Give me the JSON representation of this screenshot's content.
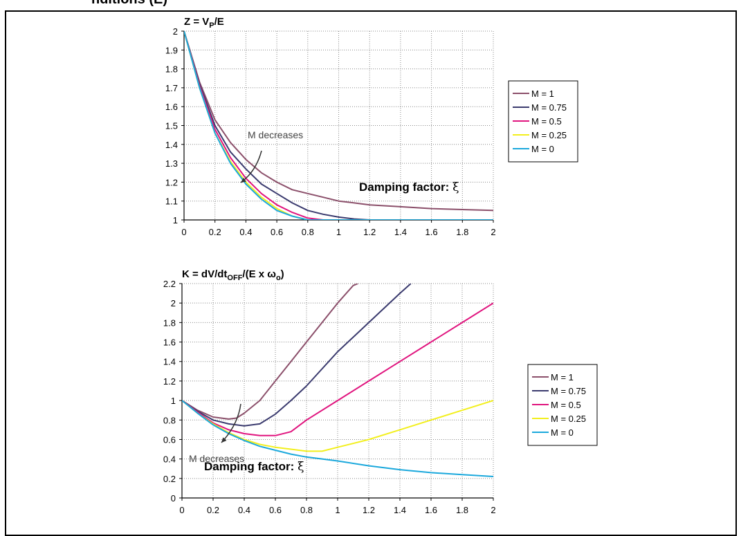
{
  "header_fragment": "nditions (E)",
  "chart_data": [
    {
      "type": "line",
      "title_parts": [
        "Z = V",
        "P",
        "/E"
      ],
      "xlabel_annotation": "Damping factor: ",
      "xi_symbol": "ξ",
      "annotation": "M decreases",
      "xlim": [
        0,
        2
      ],
      "ylim": [
        1,
        2
      ],
      "xticks": [
        "0",
        "0.2",
        "0.4",
        "0.6",
        "0.8",
        "1",
        "1.2",
        "1.4",
        "1.6",
        "1.8",
        "2"
      ],
      "yticks": [
        "1",
        "1.1",
        "1.2",
        "1.3",
        "1.4",
        "1.5",
        "1.6",
        "1.7",
        "1.8",
        "1.9",
        "2"
      ],
      "legend_position": "right",
      "colors": [
        "#8B4F6A",
        "#3A3A6E",
        "#E0147E",
        "#F2EF1C",
        "#1AA8DC"
      ],
      "x": [
        0,
        0.1,
        0.2,
        0.3,
        0.4,
        0.5,
        0.6,
        0.7,
        0.8,
        0.9,
        1.0,
        1.1,
        1.2,
        1.4,
        1.6,
        1.8,
        2.0
      ],
      "series": [
        {
          "name": "M = 1",
          "values": [
            2.0,
            1.73,
            1.53,
            1.41,
            1.32,
            1.25,
            1.2,
            1.16,
            1.14,
            1.12,
            1.1,
            1.09,
            1.08,
            1.07,
            1.06,
            1.055,
            1.05
          ]
        },
        {
          "name": "M = 0.75",
          "values": [
            2.0,
            1.72,
            1.5,
            1.36,
            1.27,
            1.19,
            1.14,
            1.09,
            1.05,
            1.03,
            1.015,
            1.005,
            1.0,
            1.0,
            1.0,
            1.0,
            1.0
          ]
        },
        {
          "name": "M = 0.5",
          "values": [
            2.0,
            1.71,
            1.48,
            1.33,
            1.22,
            1.14,
            1.08,
            1.04,
            1.01,
            1.0,
            1.0,
            1.0,
            1.0,
            1.0,
            1.0,
            1.0,
            1.0
          ]
        },
        {
          "name": "M = 0.25",
          "values": [
            2.0,
            1.7,
            1.46,
            1.31,
            1.2,
            1.12,
            1.06,
            1.02,
            1.0,
            1.0,
            1.0,
            1.0,
            1.0,
            1.0,
            1.0,
            1.0,
            1.0
          ]
        },
        {
          "name": "M = 0",
          "values": [
            2.0,
            1.7,
            1.46,
            1.3,
            1.19,
            1.11,
            1.05,
            1.02,
            1.0,
            1.0,
            1.0,
            1.0,
            1.0,
            1.0,
            1.0,
            1.0,
            1.0
          ]
        }
      ]
    },
    {
      "type": "line",
      "title_parts": [
        "K = dV/dt",
        "OFF",
        "/(E x ω",
        "o",
        ")"
      ],
      "xlabel_annotation": "Damping factor: ",
      "xi_symbol": "ξ",
      "annotation": "M decreases",
      "xlim": [
        0,
        2
      ],
      "ylim": [
        0,
        2.2
      ],
      "xticks": [
        "0",
        "0.2",
        "0.4",
        "0.6",
        "0.8",
        "1",
        "1.2",
        "1.4",
        "1.6",
        "1.8",
        "2"
      ],
      "yticks": [
        "0",
        "0.2",
        "0.4",
        "0.6",
        "0.8",
        "1",
        "1.2",
        "1.4",
        "1.6",
        "1.8",
        "2",
        "2.2"
      ],
      "legend_position": "right",
      "colors": [
        "#8B4F6A",
        "#3A3A6E",
        "#E0147E",
        "#F2EF1C",
        "#1AA8DC"
      ],
      "series": [
        {
          "name": "M = 1",
          "x": [
            0,
            0.1,
            0.2,
            0.3,
            0.35,
            0.4,
            0.5,
            0.6,
            0.7,
            0.8,
            0.9,
            1.0,
            1.1,
            1.13
          ],
          "values": [
            1.0,
            0.9,
            0.83,
            0.81,
            0.82,
            0.87,
            1.0,
            1.2,
            1.4,
            1.6,
            1.8,
            2.0,
            2.18,
            2.2
          ]
        },
        {
          "name": "M = 0.75",
          "x": [
            0,
            0.1,
            0.2,
            0.3,
            0.4,
            0.5,
            0.6,
            0.7,
            0.8,
            1.0,
            1.2,
            1.4,
            1.47
          ],
          "values": [
            1.0,
            0.89,
            0.8,
            0.76,
            0.74,
            0.76,
            0.86,
            1.0,
            1.15,
            1.5,
            1.8,
            2.1,
            2.2
          ]
        },
        {
          "name": "M = 0.5",
          "x": [
            0,
            0.1,
            0.2,
            0.3,
            0.4,
            0.5,
            0.6,
            0.7,
            0.8,
            1.0,
            1.2,
            1.4,
            1.6,
            1.8,
            2.0
          ],
          "values": [
            1.0,
            0.88,
            0.77,
            0.7,
            0.66,
            0.64,
            0.64,
            0.68,
            0.8,
            1.0,
            1.2,
            1.4,
            1.6,
            1.8,
            2.0
          ]
        },
        {
          "name": "M = 0.25",
          "x": [
            0,
            0.1,
            0.2,
            0.3,
            0.4,
            0.5,
            0.6,
            0.7,
            0.8,
            0.9,
            1.0,
            1.2,
            1.4,
            1.6,
            1.8,
            2.0
          ],
          "values": [
            1.0,
            0.87,
            0.76,
            0.67,
            0.6,
            0.55,
            0.52,
            0.5,
            0.48,
            0.48,
            0.52,
            0.6,
            0.7,
            0.8,
            0.9,
            1.0
          ]
        },
        {
          "name": "M = 0",
          "x": [
            0,
            0.1,
            0.2,
            0.3,
            0.4,
            0.5,
            0.6,
            0.7,
            0.8,
            0.9,
            1.0,
            1.2,
            1.4,
            1.6,
            1.8,
            2.0
          ],
          "values": [
            1.0,
            0.87,
            0.75,
            0.66,
            0.59,
            0.53,
            0.49,
            0.45,
            0.42,
            0.4,
            0.38,
            0.33,
            0.29,
            0.26,
            0.24,
            0.22
          ]
        }
      ]
    }
  ]
}
